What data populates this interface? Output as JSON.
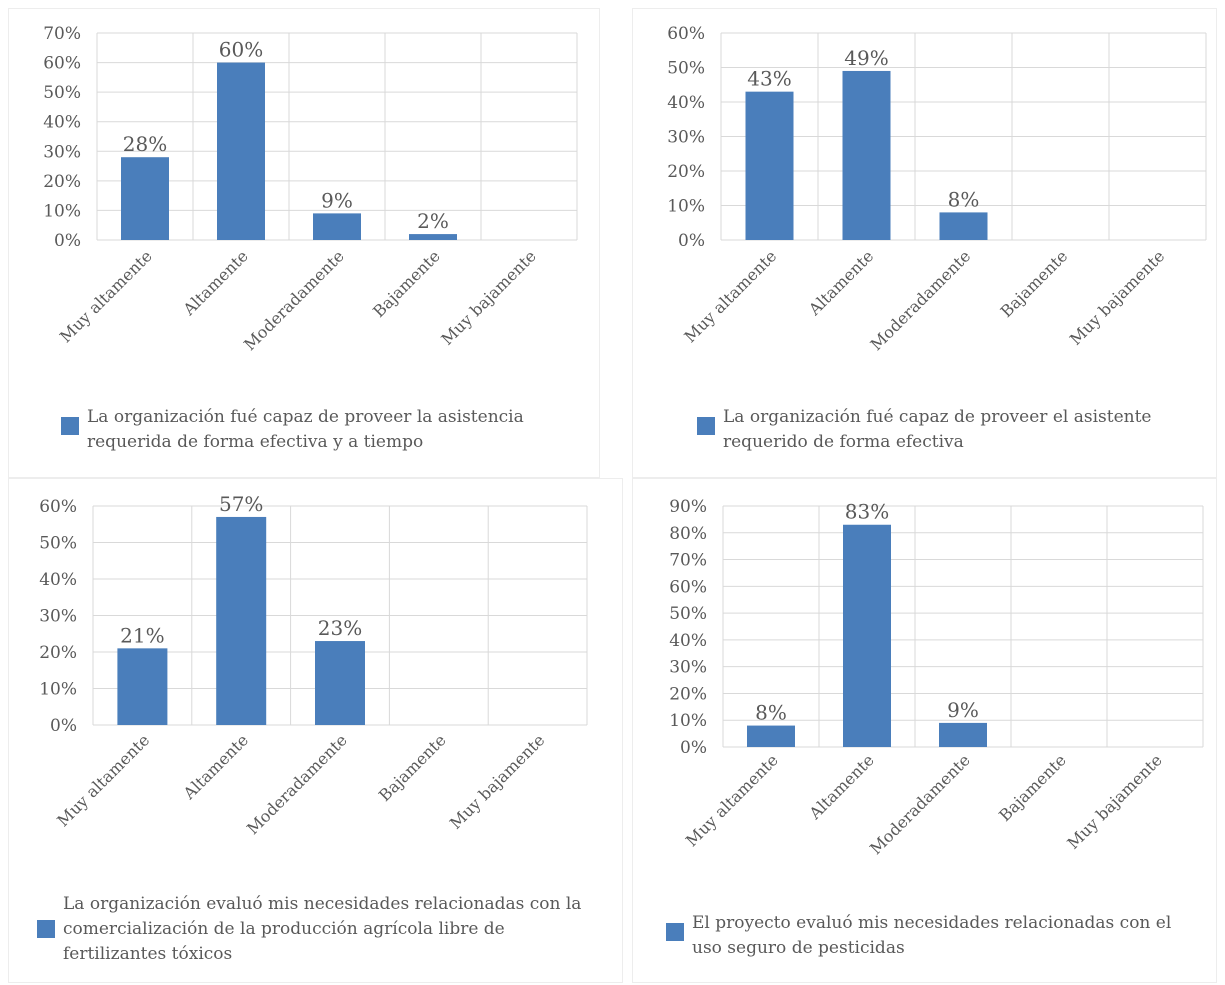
{
  "colors": {
    "bar": "#4a7ebb",
    "grid": "#d9d9d9",
    "text": "#595959"
  },
  "chart_data": [
    {
      "type": "bar",
      "categories": [
        "Muy altamente",
        "Altamente",
        "Moderadamente",
        "Bajamente",
        "Muy bajamente"
      ],
      "values": [
        28,
        60,
        9,
        2,
        null
      ],
      "data_labels": [
        "28%",
        "60%",
        "9%",
        "2%",
        ""
      ],
      "series": [
        {
          "name": "La organización fué capaz de proveer la asistencia requerida de forma efectiva y a tiempo",
          "values": [
            28,
            60,
            9,
            2,
            null
          ]
        }
      ],
      "legend": "La organización fué capaz de proveer la asistencia requerida de forma efectiva y a tiempo",
      "legend_position": "bottom",
      "ylim": [
        0,
        70
      ],
      "yticks": [
        "0%",
        "10%",
        "20%",
        "30%",
        "40%",
        "50%",
        "60%",
        "70%"
      ],
      "grid": true
    },
    {
      "type": "bar",
      "categories": [
        "Muy altamente",
        "Altamente",
        "Moderadamente",
        "Bajamente",
        "Muy bajamente"
      ],
      "values": [
        43,
        49,
        8,
        null,
        null
      ],
      "data_labels": [
        "43%",
        "49%",
        "8%",
        "",
        ""
      ],
      "series": [
        {
          "name": "La organización fué capaz de proveer el asistente requerido de forma efectiva",
          "values": [
            43,
            49,
            8,
            null,
            null
          ]
        }
      ],
      "legend": "La organización fué capaz de proveer el asistente requerido de forma efectiva",
      "legend_position": "bottom",
      "ylim": [
        0,
        60
      ],
      "yticks": [
        "0%",
        "10%",
        "20%",
        "30%",
        "40%",
        "50%",
        "60%"
      ],
      "grid": true
    },
    {
      "type": "bar",
      "categories": [
        "Muy altamente",
        "Altamente",
        "Moderadamente",
        "Bajamente",
        "Muy bajamente"
      ],
      "values": [
        21,
        57,
        23,
        null,
        null
      ],
      "data_labels": [
        "21%",
        "57%",
        "23%",
        "",
        ""
      ],
      "series": [
        {
          "name": "La organización evaluó mis necesidades relacionadas con la comercialización de la producción agrícola libre de fertilizantes tóxicos",
          "values": [
            21,
            57,
            23,
            null,
            null
          ]
        }
      ],
      "legend": "La organización evaluó mis necesidades relacionadas con la comercialización de la producción agrícola libre de fertilizantes tóxicos",
      "legend_position": "bottom",
      "ylim": [
        0,
        60
      ],
      "yticks": [
        "0%",
        "10%",
        "20%",
        "30%",
        "40%",
        "50%",
        "60%"
      ],
      "grid": true
    },
    {
      "type": "bar",
      "categories": [
        "Muy altamente",
        "Altamente",
        "Moderadamente",
        "Bajamente",
        "Muy bajamente"
      ],
      "values": [
        8,
        83,
        9,
        null,
        null
      ],
      "data_labels": [
        "8%",
        "83%",
        "9%",
        "",
        ""
      ],
      "series": [
        {
          "name": "El proyecto evaluó mis necesidades relacionadas con el uso seguro de pesticidas",
          "values": [
            8,
            83,
            9,
            null,
            null
          ]
        }
      ],
      "legend": "El proyecto evaluó mis necesidades relacionadas con el uso seguro de pesticidas",
      "legend_position": "bottom",
      "ylim": [
        0,
        90
      ],
      "yticks": [
        "0%",
        "10%",
        "20%",
        "30%",
        "40%",
        "50%",
        "60%",
        "70%",
        "80%",
        "90%"
      ],
      "grid": true
    }
  ]
}
